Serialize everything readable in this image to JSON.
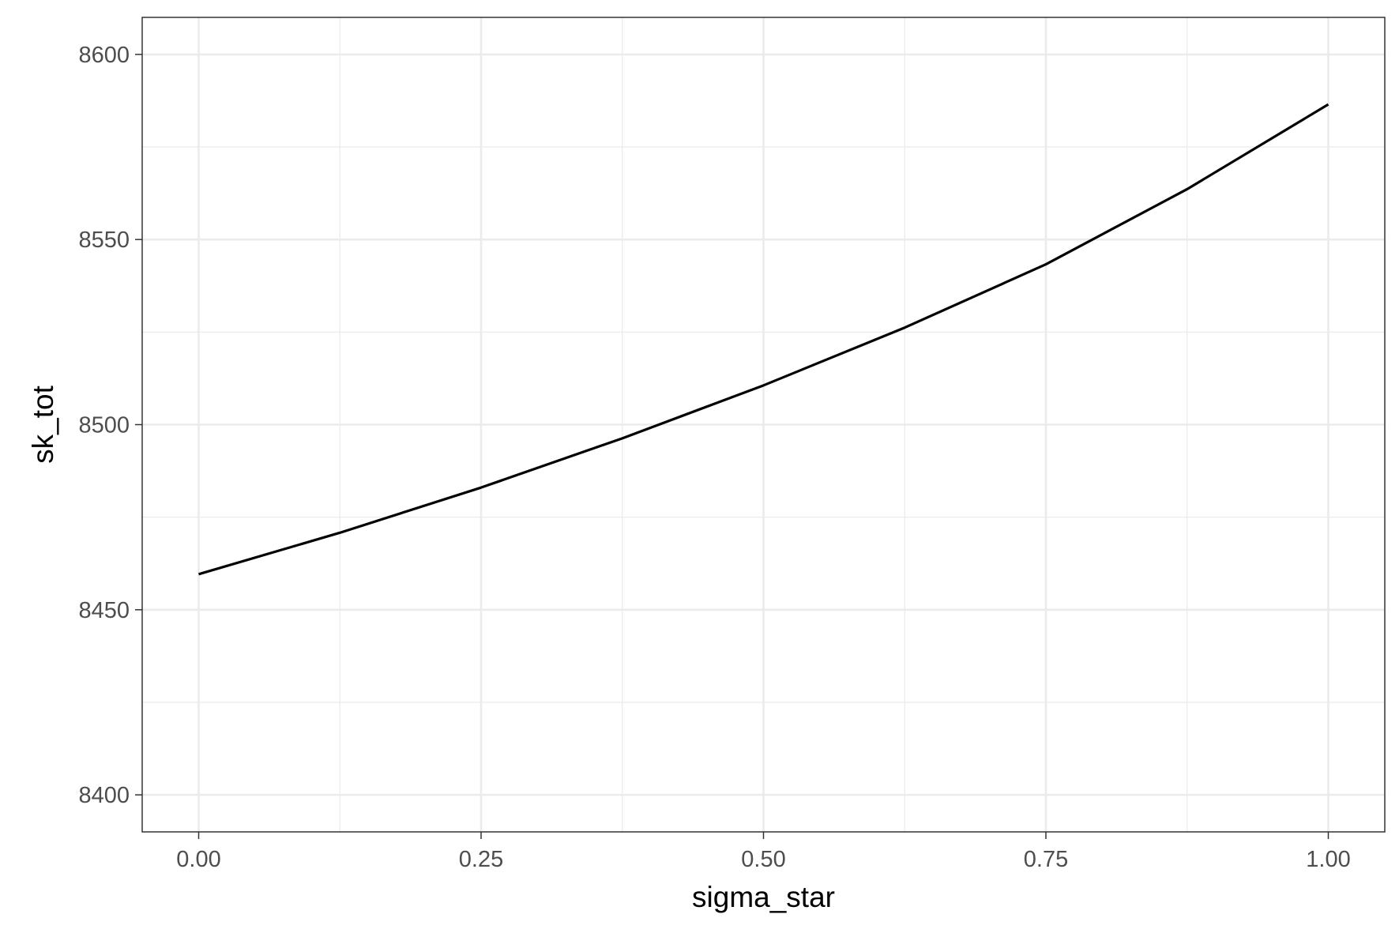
{
  "chart_data": {
    "type": "line",
    "title": "",
    "xlabel": "sigma_star",
    "ylabel": "sk_tot",
    "xlim": [
      -0.05,
      1.05
    ],
    "ylim": [
      8390,
      8610
    ],
    "x_ticks": [
      0.0,
      0.25,
      0.5,
      0.75,
      1.0
    ],
    "x_tick_labels": [
      "0.00",
      "0.25",
      "0.50",
      "0.75",
      "1.00"
    ],
    "y_ticks": [
      8400,
      8450,
      8500,
      8550,
      8600
    ],
    "y_tick_labels": [
      "8400",
      "8450",
      "8500",
      "8550",
      "8600"
    ],
    "grid": true,
    "legend": "none",
    "series": [
      {
        "color": "#000000",
        "x": [
          0.0,
          0.125,
          0.25,
          0.375,
          0.5,
          0.625,
          0.75,
          0.875,
          1.0
        ],
        "y": [
          8459.6,
          8470.8,
          8483.0,
          8496.3,
          8510.6,
          8526.2,
          8543.3,
          8563.6,
          8586.5
        ]
      }
    ]
  }
}
